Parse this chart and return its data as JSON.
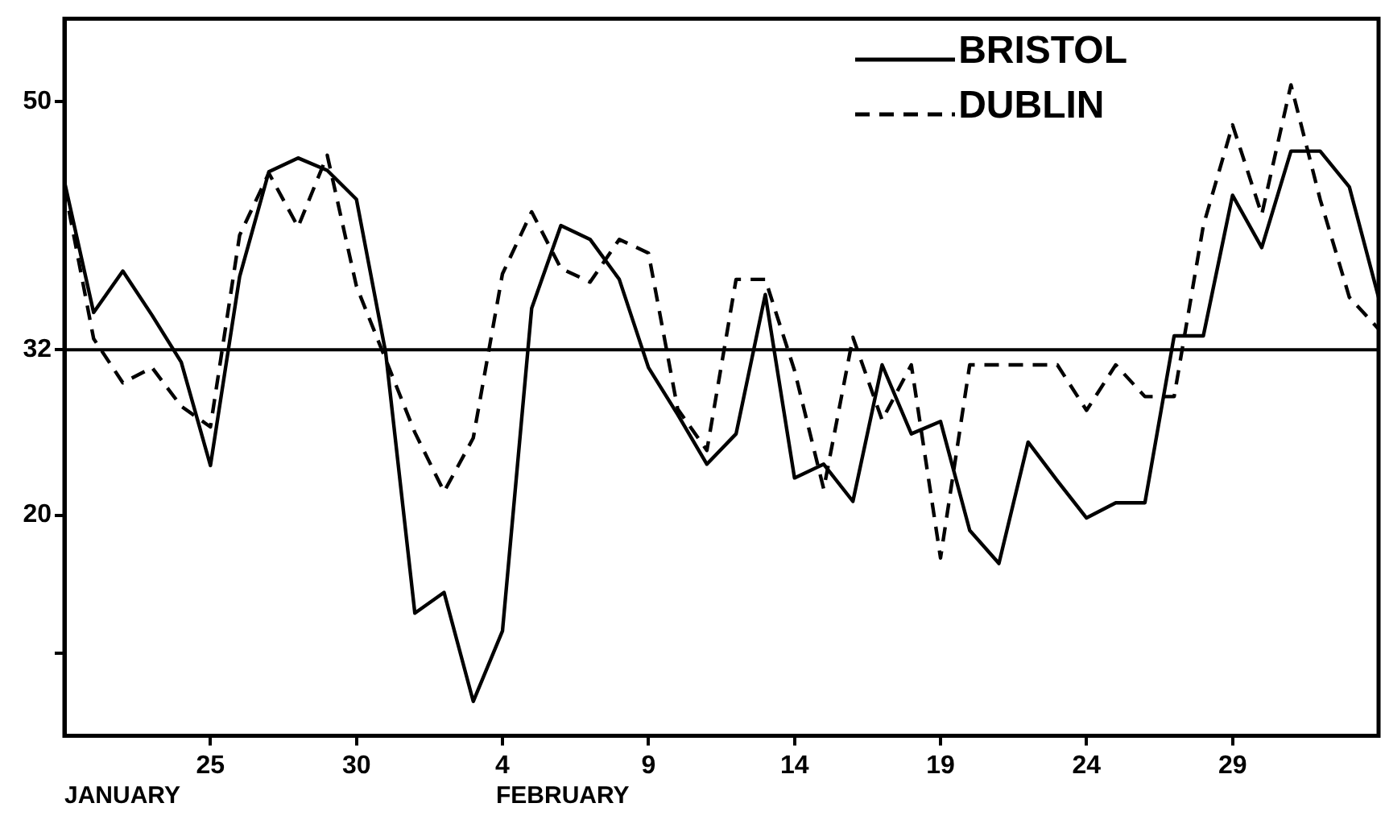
{
  "chart_data": {
    "type": "line",
    "x": [
      "--01-20",
      "--01-21",
      "--01-22",
      "--01-23",
      "--01-24",
      "--01-25",
      "--01-26",
      "--01-27",
      "--01-28",
      "--01-29",
      "--01-30",
      "--01-31",
      "--02-01",
      "--02-02",
      "--02-03",
      "--02-04",
      "--02-05",
      "--02-06",
      "--02-07",
      "--02-08",
      "--02-09",
      "--02-10",
      "--02-11",
      "--02-12",
      "--02-13",
      "--02-14",
      "--02-15",
      "--02-16",
      "--02-17",
      "--02-18",
      "--02-19",
      "--02-20",
      "--02-21",
      "--02-22",
      "--02-23",
      "--02-24",
      "--02-25",
      "--02-26",
      "--02-27",
      "--02-28",
      "--02-29",
      "--03-01",
      "--03-02",
      "--03-03",
      "--03-04",
      "--03-05"
    ],
    "series": [
      {
        "name": "BRISTOL",
        "color": "#000000",
        "line_style": "solid",
        "values": [
          44.2,
          34.7,
          37.7,
          34.5,
          31.1,
          23.6,
          37.3,
          44.9,
          45.9,
          45.0,
          42.9,
          31.8,
          12.9,
          14.4,
          6.5,
          11.6,
          35.0,
          41.0,
          40.0,
          37.1,
          30.7,
          27.3,
          23.7,
          25.9,
          36.0,
          22.7,
          23.7,
          21.0,
          30.9,
          25.9,
          26.8,
          18.9,
          16.5,
          25.3,
          22.5,
          19.8,
          20.9,
          20.9,
          33.0,
          33.0,
          43.2,
          39.4,
          46.4,
          46.4,
          43.8,
          35.8
        ]
      },
      {
        "name": "DUBLIN",
        "color": "#000000",
        "line_style": "dashed",
        "values": [
          43.8,
          32.8,
          29.6,
          30.7,
          27.9,
          26.4,
          40.3,
          44.8,
          40.9,
          46.1,
          36.6,
          31.3,
          26.0,
          21.7,
          25.6,
          37.5,
          42.0,
          37.9,
          36.9,
          40.0,
          39.0,
          27.7,
          24.7,
          37.1,
          37.1,
          30.5,
          21.9,
          32.9,
          26.9,
          30.9,
          16.9,
          30.9,
          30.9,
          30.9,
          30.9,
          27.6,
          30.9,
          28.6,
          28.6,
          41.0,
          48.3,
          41.8,
          51.2,
          42.9,
          35.8,
          33.5
        ]
      }
    ],
    "xlim": [
      "--01-20",
      "--03-05"
    ],
    "xticks": [
      {
        "value": "--01-25",
        "label": "25"
      },
      {
        "value": "--01-30",
        "label": "30"
      },
      {
        "value": "--02-04",
        "label": "4"
      },
      {
        "value": "--02-09",
        "label": "9"
      },
      {
        "value": "--02-14",
        "label": "14"
      },
      {
        "value": "--02-19",
        "label": "19"
      },
      {
        "value": "--02-24",
        "label": "24"
      },
      {
        "value": "--02-29",
        "label": "29"
      }
    ],
    "ylim": [
      4,
      56
    ],
    "yticks": [
      {
        "value": 10,
        "label": null
      },
      20,
      32,
      50
    ],
    "ref_lines": [
      {
        "axis": "y",
        "value": 32,
        "label": null,
        "color": "#000000"
      }
    ],
    "annotations": [
      "JANUARY",
      "FEBRUARY"
    ],
    "legend": "top right",
    "marker": "none",
    "grid": false
  }
}
